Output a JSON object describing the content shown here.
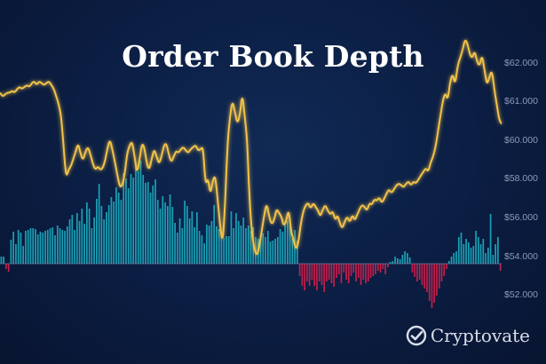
{
  "chart_data": {
    "type": "line",
    "title": "Order Book Depth",
    "y_axis": {
      "ticks": [
        "$62.000",
        "$61.000",
        "$60.000",
        "$58.000",
        "$56.000",
        "$54.000",
        "$52.000"
      ],
      "side": "right",
      "scale": "piecewise"
    },
    "grid": false,
    "price_line": {
      "color": "#f0c24a",
      "values": [
        61.2,
        61.1,
        61.15,
        61.2,
        61.2,
        61.25,
        61.2,
        61.3,
        61.35,
        61.3,
        61.35,
        61.4,
        61.35,
        61.45,
        61.5,
        61.4,
        61.5,
        61.45,
        61.4,
        61.45,
        61.5,
        61.4,
        61.3,
        61.1,
        60.9,
        60.6,
        59.6,
        58.0,
        58.4,
        58.6,
        59.0,
        59.4,
        59.8,
        59.2,
        58.9,
        59.4,
        59.6,
        59.2,
        58.7,
        58.4,
        58.6,
        58.4,
        58.5,
        58.9,
        59.6,
        60.0,
        59.4,
        58.8,
        58.1,
        57.5,
        57.6,
        58.2,
        59.3,
        59.7,
        59.9,
        59.1,
        58.2,
        58.9,
        59.8,
        59.6,
        58.7,
        58.4,
        59.0,
        59.5,
        59.1,
        58.7,
        59.1,
        59.7,
        59.8,
        59.2,
        58.8,
        59.1,
        59.4,
        59.3,
        59.5,
        59.6,
        59.4,
        59.3,
        59.5,
        59.6,
        59.7,
        59.4,
        59.5,
        59.6,
        57.6,
        58.0,
        57.1,
        57.9,
        58.1,
        56.8,
        55.5,
        54.6,
        56.7,
        59.8,
        60.6,
        61.0,
        60.7,
        60.4,
        60.6,
        61.2,
        60.6,
        60.0,
        56.8,
        55.1,
        54.3,
        54.0,
        54.5,
        55.3,
        56.1,
        56.7,
        56.0,
        55.6,
        55.8,
        56.4,
        56.2,
        56.0,
        55.5,
        55.8,
        56.4,
        55.2,
        54.8,
        54.3,
        54.7,
        55.7,
        56.3,
        56.6,
        56.7,
        56.4,
        56.7,
        56.5,
        56.3,
        56.0,
        56.4,
        56.6,
        56.3,
        56.1,
        56.3,
        55.8,
        56.1,
        55.6,
        55.4,
        55.8,
        56.0,
        55.7,
        56.1,
        55.8,
        56.1,
        56.4,
        56.6,
        56.5,
        56.3,
        56.7,
        56.6,
        56.9,
        56.8,
        57.0,
        56.7,
        56.9,
        57.2,
        57.4,
        57.2,
        57.4,
        57.6,
        57.7,
        57.6,
        57.5,
        57.7,
        57.8,
        57.6,
        57.8,
        57.7,
        57.9,
        58.1,
        58.3,
        58.5,
        58.3,
        58.8,
        59.1,
        59.6,
        60.2,
        60.6,
        61.0,
        61.2,
        61.0,
        61.5,
        61.7,
        61.4,
        61.9,
        62.1,
        62.3,
        62.6,
        62.5,
        62.2,
        62.1,
        62.3,
        62.0,
        61.9,
        62.2,
        61.8,
        61.4,
        61.6,
        61.8,
        61.3,
        60.9,
        60.5,
        60.4
      ]
    },
    "depth_bars": {
      "bid_color": "#1aa0b4",
      "ask_color": "#c21f4a",
      "values": [
        8,
        8,
        -6,
        -9,
        27,
        36,
        22,
        38,
        35,
        20,
        37,
        38,
        40,
        40,
        39,
        33,
        36,
        35,
        37,
        38,
        40,
        41,
        32,
        43,
        40,
        38,
        37,
        42,
        50,
        55,
        38,
        57,
        48,
        62,
        45,
        69,
        62,
        40,
        52,
        73,
        90,
        65,
        50,
        58,
        66,
        75,
        70,
        86,
        80,
        72,
        102,
        96,
        85,
        101,
        97,
        109,
        104,
        116,
        100,
        91,
        92,
        80,
        88,
        95,
        72,
        62,
        76,
        69,
        65,
        78,
        64,
        46,
        35,
        51,
        40,
        71,
        65,
        51,
        59,
        41,
        58,
        37,
        32,
        23,
        44,
        43,
        48,
        66,
        42,
        39,
        31,
        29,
        31,
        31,
        59,
        40,
        57,
        48,
        43,
        52,
        40,
        43,
        37,
        41,
        30,
        28,
        28,
        34,
        30,
        37,
        25,
        26,
        28,
        30,
        39,
        36,
        43,
        48,
        43,
        28,
        38,
        26,
        -14,
        -25,
        -30,
        -20,
        -25,
        -18,
        -25,
        -30,
        -20,
        -24,
        -32,
        -20,
        -18,
        -22,
        -26,
        -16,
        -12,
        -22,
        -10,
        -18,
        -22,
        -14,
        -10,
        -20,
        -16,
        -24,
        -18,
        -22,
        -20,
        -16,
        -14,
        -12,
        -8,
        -10,
        -6,
        -12,
        -4,
        2,
        3,
        8,
        6,
        5,
        10,
        14,
        12,
        7,
        -10,
        -15,
        -20,
        -18,
        -24,
        -28,
        -32,
        -42,
        -50,
        -44,
        -36,
        -28,
        -20,
        -14,
        -6,
        3,
        8,
        12,
        14,
        30,
        35,
        22,
        28,
        24,
        18,
        20,
        37,
        30,
        22,
        28,
        12,
        18,
        56,
        10,
        22,
        30,
        -8
      ]
    }
  },
  "branding": {
    "name": "Cryptovate",
    "logo_icon": "check-circle-icon"
  },
  "colors": {
    "background": "#0b1d42",
    "axis_text": "#8d9bb5",
    "baseline": "#6e7ea0"
  }
}
